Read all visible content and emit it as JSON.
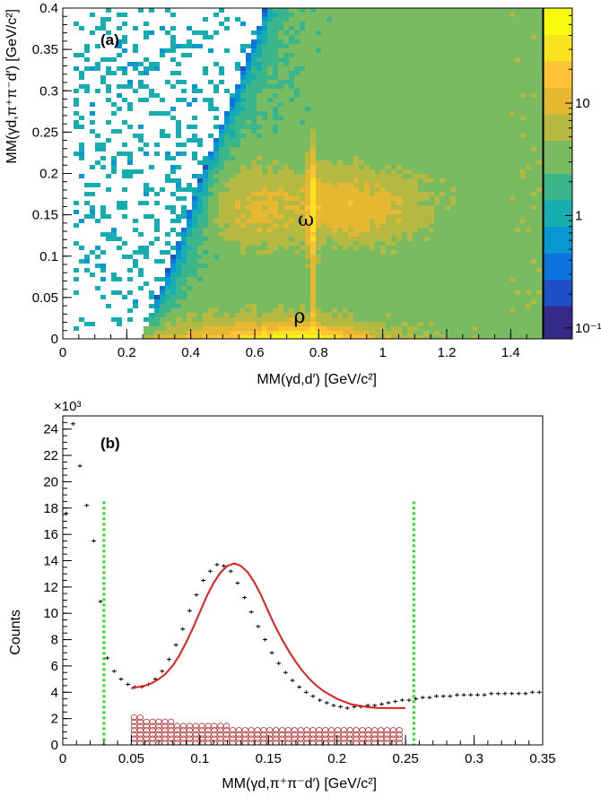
{
  "chart_data": [
    {
      "type": "heatmap",
      "panel_label": "(a)",
      "xlabel": "MM(γd,d′) [GeV/c²]",
      "ylabel": "MM(γd,π⁺π⁻d′) [GeV/c²]",
      "xlim": [
        0,
        1.5
      ],
      "ylim": [
        0,
        0.4
      ],
      "x_ticks": [
        "0",
        "0.2",
        "0.4",
        "0.6",
        "0.8",
        "1",
        "1.2",
        "1.4"
      ],
      "y_ticks": [
        "0",
        "0.05",
        "0.1",
        "0.15",
        "0.2",
        "0.25",
        "0.3",
        "0.35",
        "0.4"
      ],
      "z_scale": "log",
      "z_range": [
        0.08,
        70
      ],
      "z_ticks": [
        "10⁻¹",
        "1",
        "10"
      ],
      "annotations": [
        {
          "text": "ω",
          "x": 0.76,
          "y": 0.145
        },
        {
          "text": "ρ",
          "x": 0.74,
          "y": 0.028
        }
      ],
      "palette": [
        "#352a87",
        "#2050c8",
        "#0b75dd",
        "#0898d1",
        "#17acb0",
        "#3bb68a",
        "#79bb61",
        "#b5b942",
        "#e6b832",
        "#fdc236",
        "#f9e21e",
        "#f9fb0e"
      ]
    },
    {
      "type": "scatter",
      "panel_label": "(b)",
      "xlabel": "MM(γd,π⁺π⁻d′) [GeV/c²]",
      "ylabel": "Counts",
      "y_multiplier": "×10³",
      "xlim": [
        0,
        0.35
      ],
      "ylim": [
        0,
        25
      ],
      "x_ticks": [
        "0",
        "0.05",
        "0.1",
        "0.15",
        "0.2",
        "0.25",
        "0.3",
        "0.35"
      ],
      "y_ticks": [
        "0",
        "2",
        "4",
        "6",
        "8",
        "10",
        "12",
        "14",
        "16",
        "18",
        "20",
        "22",
        "24"
      ],
      "data_points": {
        "x": [
          0.0025,
          0.0075,
          0.0125,
          0.0175,
          0.0225,
          0.0275,
          0.0325,
          0.0375,
          0.0425,
          0.0475,
          0.0525,
          0.0575,
          0.0625,
          0.0675,
          0.0725,
          0.0775,
          0.0825,
          0.0875,
          0.0925,
          0.0975,
          0.1025,
          0.1075,
          0.1125,
          0.1175,
          0.1225,
          0.1275,
          0.1325,
          0.1375,
          0.1425,
          0.1475,
          0.1525,
          0.1575,
          0.1625,
          0.1675,
          0.1725,
          0.1775,
          0.1825,
          0.1875,
          0.1925,
          0.1975,
          0.2025,
          0.2075,
          0.2125,
          0.2175,
          0.2225,
          0.2275,
          0.2325,
          0.2375,
          0.2425,
          0.2475,
          0.2525,
          0.2575,
          0.2625,
          0.2675,
          0.2725,
          0.2775,
          0.2825,
          0.2875,
          0.2925,
          0.2975,
          0.3025,
          0.3075,
          0.3125,
          0.3175,
          0.3225,
          0.3275,
          0.3325,
          0.3375,
          0.3425,
          0.3475
        ],
        "y": [
          17.6,
          24.4,
          21.2,
          18.2,
          15.5,
          10.9,
          6.6,
          5.6,
          5.0,
          4.6,
          4.4,
          4.4,
          4.6,
          5.0,
          5.6,
          6.5,
          7.6,
          8.8,
          10.2,
          11.4,
          12.5,
          13.2,
          13.7,
          13.6,
          13.2,
          12.3,
          11.2,
          10.1,
          9.0,
          8.0,
          7.0,
          6.2,
          5.5,
          4.9,
          4.4,
          4.0,
          3.7,
          3.4,
          3.2,
          3.0,
          2.9,
          2.8,
          2.9,
          2.9,
          3.0,
          3.0,
          3.1,
          3.2,
          3.3,
          3.4,
          3.4,
          3.5,
          3.6,
          3.6,
          3.7,
          3.7,
          3.7,
          3.8,
          3.8,
          3.8,
          3.8,
          3.8,
          3.9,
          3.9,
          3.9,
          3.9,
          3.9,
          3.9,
          4.0,
          4.0
        ]
      },
      "fit_curve": {
        "x": [
          0.05,
          0.055,
          0.06,
          0.065,
          0.07,
          0.075,
          0.08,
          0.085,
          0.09,
          0.095,
          0.1,
          0.105,
          0.11,
          0.115,
          0.12,
          0.125,
          0.13,
          0.135,
          0.14,
          0.145,
          0.15,
          0.155,
          0.16,
          0.165,
          0.17,
          0.175,
          0.18,
          0.185,
          0.19,
          0.195,
          0.2,
          0.205,
          0.21,
          0.215,
          0.22,
          0.225,
          0.23,
          0.235,
          0.24,
          0.245,
          0.25
        ],
        "y": [
          4.3,
          4.4,
          4.5,
          4.7,
          5.0,
          5.4,
          6.0,
          6.8,
          7.8,
          8.9,
          10.1,
          11.3,
          12.3,
          13.1,
          13.6,
          13.8,
          13.6,
          13.1,
          12.3,
          11.3,
          10.1,
          9.0,
          8.0,
          7.1,
          6.3,
          5.6,
          5.0,
          4.5,
          4.1,
          3.8,
          3.5,
          3.3,
          3.1,
          3.0,
          2.9,
          2.85,
          2.8,
          2.8,
          2.8,
          2.8,
          2.8
        ],
        "color": "#e02020"
      },
      "background_band": {
        "x": [
          0.05,
          0.075,
          0.1,
          0.125,
          0.15,
          0.175,
          0.2,
          0.225,
          0.25
        ],
        "y": [
          2.2,
          1.8,
          1.6,
          1.4,
          1.3,
          1.2,
          1.15,
          1.2,
          1.25
        ],
        "color": "#b03030"
      },
      "cut_lines": {
        "x": [
          0.03,
          0.256
        ],
        "color": "#22dd22"
      }
    }
  ]
}
